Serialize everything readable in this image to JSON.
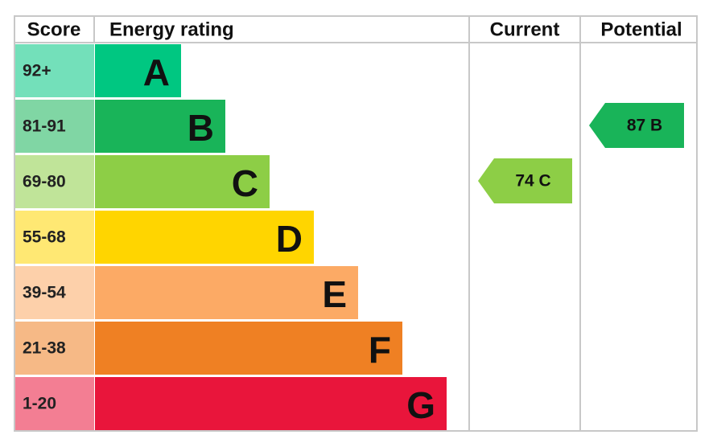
{
  "header": {
    "score": "Score",
    "energy_rating": "Energy rating",
    "current": "Current",
    "potential": "Potential"
  },
  "bands": [
    {
      "score": "92+",
      "letter": "A",
      "color": "#00c781"
    },
    {
      "score": "81-91",
      "letter": "B",
      "color": "#19b459"
    },
    {
      "score": "69-80",
      "letter": "C",
      "color": "#8dce46"
    },
    {
      "score": "55-68",
      "letter": "D",
      "color": "#ffd500"
    },
    {
      "score": "39-54",
      "letter": "E",
      "color": "#fcaa65"
    },
    {
      "score": "21-38",
      "letter": "F",
      "color": "#ef8023"
    },
    {
      "score": "1-20",
      "letter": "G",
      "color": "#e9153b"
    }
  ],
  "current": "74 C",
  "potential": "87 B"
}
